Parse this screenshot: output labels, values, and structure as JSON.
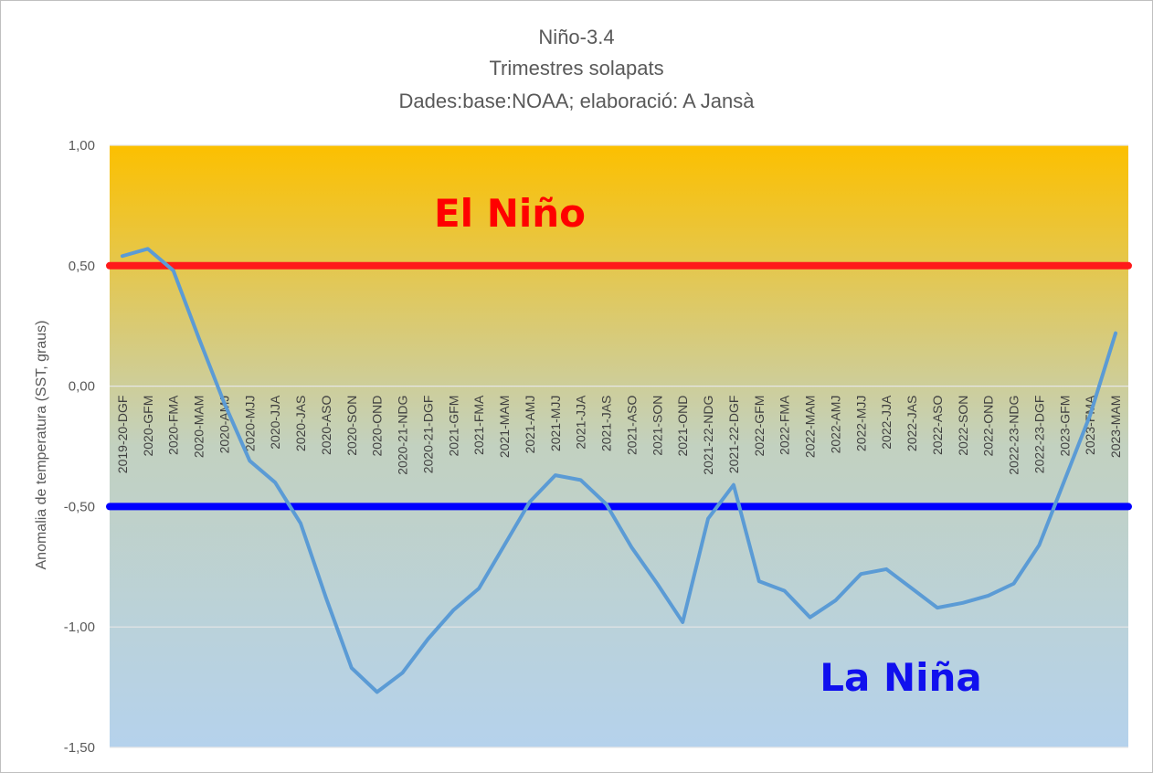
{
  "chart_data": {
    "type": "line",
    "title": "Niño-3.4",
    "subtitle": "Trimestres solapats",
    "source": "Dades:base:NOAA; elaboració: A Jansà",
    "ylabel": "Anomalia de temperatura (SST, graus)",
    "xlabel": "",
    "ylim": [
      -1.5,
      1.0
    ],
    "y_ticks": [
      "1,00",
      "0,50",
      "0,00",
      "-0,50",
      "-1,00",
      "-1,50"
    ],
    "y_tick_values": [
      1.0,
      0.5,
      0.0,
      -0.5,
      -1.0,
      -1.5
    ],
    "grid": true,
    "categories": [
      "2019-20-DGF",
      "2020-GFM",
      "2020-FMA",
      "2020-MAM",
      "2020-AMJ",
      "2020-MJJ",
      "2020-JJA",
      "2020-JAS",
      "2020-ASO",
      "2020-SON",
      "2020-OND",
      "2020-21-NDG",
      "2020-21-DGF",
      "2021-GFM",
      "2021-FMA",
      "2021-MAM",
      "2021-AMJ",
      "2021-MJJ",
      "2021-JJA",
      "2021-JAS",
      "2021-ASO",
      "2021-SON",
      "2021-OND",
      "2021-22-NDG",
      "2021-22-DGF",
      "2022-GFM",
      "2022-FMA",
      "2022-MAM",
      "2022-AMJ",
      "2022-MJJ",
      "2022-JJA",
      "2022-JAS",
      "2022-ASO",
      "2022-SON",
      "2022-OND",
      "2022-23-NDG",
      "2022-23-DGF",
      "2023-GFM",
      "2023-FMA",
      "2023-MAM"
    ],
    "series": [
      {
        "values": [
          0.54,
          0.57,
          0.48,
          0.2,
          -0.07,
          -0.31,
          -0.4,
          -0.57,
          -0.88,
          -1.17,
          -1.27,
          -1.19,
          -1.05,
          -0.93,
          -0.84,
          -0.66,
          -0.48,
          -0.37,
          -0.39,
          -0.49,
          -0.67,
          -0.82,
          -0.98,
          -0.55,
          -0.41,
          -0.81,
          -0.85,
          -0.96,
          -0.89,
          -0.78,
          -0.76,
          -0.84,
          -0.92,
          -0.9,
          -0.87,
          -0.82,
          -0.66,
          -0.39,
          -0.12,
          0.22
        ],
        "color": "#5b9bd5"
      }
    ],
    "threshold_lines": [
      {
        "value": 0.5,
        "color": "#ff1a1a"
      },
      {
        "value": -0.5,
        "color": "#0000ff"
      }
    ],
    "annotations": [
      {
        "text": "El Niño",
        "color": "#ff0000"
      },
      {
        "text": "La Niña",
        "color": "#1010ee"
      }
    ],
    "background_gradient": [
      "#fcc000",
      "#c2d1c0",
      "#b5d2ec"
    ]
  }
}
